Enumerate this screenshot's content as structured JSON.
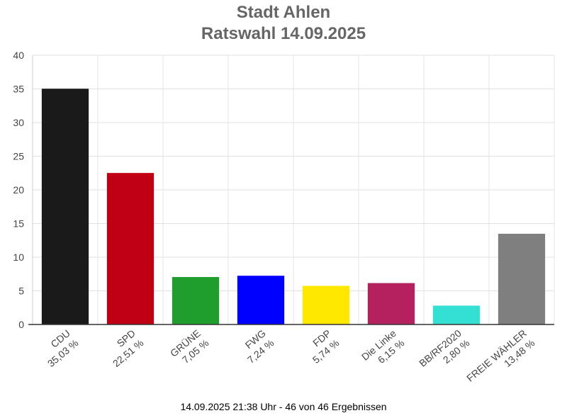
{
  "header": {
    "title": "Stadt Ahlen",
    "subtitle": "Ratswahl 14.09.2025"
  },
  "footer": {
    "status": "14.09.2025 21:38 Uhr - 46 von 46 Ergebnissen"
  },
  "chart_data": {
    "type": "bar",
    "title": "Stadt Ahlen",
    "subtitle": "Ratswahl 14.09.2025",
    "xlabel": "",
    "ylabel": "",
    "ylim": [
      0,
      40
    ],
    "yticks": [
      0,
      5,
      10,
      15,
      20,
      25,
      30,
      35,
      40
    ],
    "grid": true,
    "legend": "none",
    "categories": [
      "CDU",
      "SPD",
      "GRÜNE",
      "FWG",
      "FDP",
      "Die Linke",
      "BB/RF2020",
      "FREIE WÄHLER"
    ],
    "value_labels": [
      "35,03 %",
      "22,51 %",
      "7,05 %",
      "7,24 %",
      "5,74 %",
      "6,15 %",
      "2,80 %",
      "13,48 %"
    ],
    "values": [
      35.03,
      22.51,
      7.05,
      7.24,
      5.74,
      6.15,
      2.8,
      13.48
    ],
    "colors": [
      "#1a1a1a",
      "#c00012",
      "#1f9e2e",
      "#0000ff",
      "#ffe800",
      "#b5205e",
      "#33e0d2",
      "#7f7f7f"
    ]
  }
}
